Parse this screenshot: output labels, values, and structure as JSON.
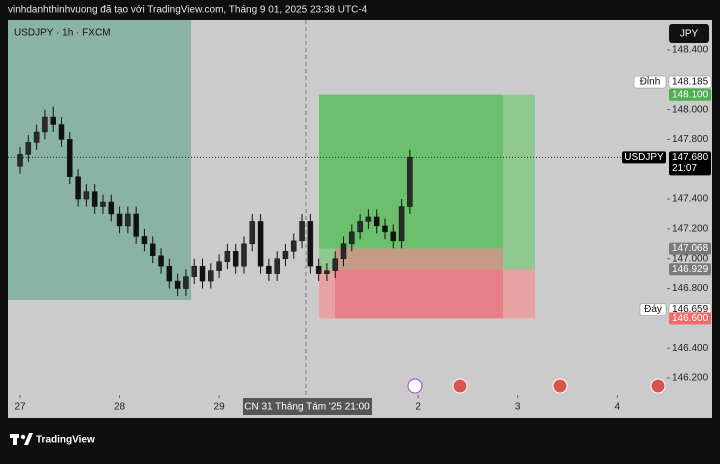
{
  "chart_data": {
    "type": "candlestick",
    "header": "vinhdanhthinhvuong đã tạo với TradingView.com, Tháng 9 01, 2025 23:38 UTC-4",
    "title": "USDJPY · 1h · FXCM",
    "currency": "JPY",
    "brand": "TradingView",
    "color": "#111111",
    "x": [
      0,
      2,
      4,
      6,
      8,
      10,
      12,
      14,
      16,
      18,
      20,
      22,
      24,
      26,
      28,
      30,
      32,
      34,
      36,
      38,
      40,
      42,
      44,
      46,
      48,
      50,
      52,
      54,
      56,
      58,
      60,
      62,
      64,
      66,
      68,
      70,
      72,
      74,
      76,
      78,
      80,
      82,
      84,
      86,
      88,
      90,
      92,
      94
    ],
    "open": [
      147.62,
      147.7,
      147.78,
      147.85,
      147.95,
      147.9,
      147.8,
      147.55,
      147.4,
      147.45,
      147.35,
      147.38,
      147.3,
      147.22,
      147.3,
      147.15,
      147.1,
      147.02,
      146.95,
      146.85,
      146.8,
      146.88,
      146.95,
      146.85,
      146.92,
      146.98,
      147.05,
      146.95,
      147.1,
      147.25,
      146.95,
      146.9,
      147.0,
      147.05,
      147.12,
      147.25,
      146.95,
      146.9,
      146.92,
      147.0,
      147.1,
      147.18,
      147.25,
      147.28,
      147.22,
      147.18,
      147.12,
      147.35
    ],
    "high": [
      147.75,
      147.83,
      147.9,
      148.0,
      148.02,
      147.95,
      147.85,
      147.6,
      147.5,
      147.5,
      147.43,
      147.43,
      147.35,
      147.35,
      147.35,
      147.2,
      147.15,
      147.07,
      147.0,
      146.9,
      146.93,
      147.0,
      147.0,
      146.97,
      147.03,
      147.1,
      147.1,
      147.15,
      147.3,
      147.3,
      147.0,
      147.05,
      147.1,
      147.17,
      147.3,
      147.3,
      147.0,
      146.97,
      147.05,
      147.15,
      147.23,
      147.3,
      147.33,
      147.33,
      147.27,
      147.23,
      147.4,
      147.73
    ],
    "low": [
      147.57,
      147.65,
      147.73,
      147.8,
      147.85,
      147.75,
      147.5,
      147.35,
      147.35,
      147.3,
      147.3,
      147.25,
      147.17,
      147.17,
      147.1,
      147.05,
      146.97,
      146.9,
      146.8,
      146.75,
      146.75,
      146.83,
      146.8,
      146.8,
      146.87,
      146.93,
      146.9,
      146.9,
      147.05,
      146.9,
      146.85,
      146.85,
      146.95,
      147.0,
      147.07,
      146.9,
      146.85,
      146.85,
      146.87,
      146.95,
      147.05,
      147.13,
      147.2,
      147.17,
      147.13,
      147.07,
      147.07,
      147.3
    ],
    "close": [
      147.7,
      147.78,
      147.85,
      147.95,
      147.9,
      147.8,
      147.55,
      147.4,
      147.45,
      147.35,
      147.38,
      147.3,
      147.22,
      147.3,
      147.15,
      147.1,
      147.02,
      146.95,
      146.85,
      146.8,
      146.88,
      146.95,
      146.85,
      146.92,
      146.98,
      147.05,
      146.95,
      147.1,
      147.25,
      146.95,
      146.9,
      147.0,
      147.05,
      147.12,
      147.25,
      146.95,
      146.9,
      146.92,
      147.0,
      147.1,
      147.18,
      147.25,
      147.28,
      147.22,
      147.18,
      147.12,
      147.35,
      147.68
    ],
    "xlim": [
      -2.9,
      156
    ],
    "ylim": [
      146.086,
      148.601
    ],
    "xticks": [
      {
        "value": 0,
        "label": "27"
      },
      {
        "value": 24,
        "label": "28"
      },
      {
        "value": 48,
        "label": "29"
      },
      {
        "value": 96,
        "label": "2"
      },
      {
        "value": 120,
        "label": "3"
      },
      {
        "value": 144,
        "label": "4"
      }
    ],
    "yticks": [
      {
        "value": 148.4,
        "label": "148.400"
      },
      {
        "value": 148.0,
        "label": "148.000"
      },
      {
        "value": 147.8,
        "label": "147.800"
      },
      {
        "value": 147.4,
        "label": "147.400"
      },
      {
        "value": 147.2,
        "label": "147.200"
      },
      {
        "value": 147.0,
        "label": "147.000"
      },
      {
        "value": 146.8,
        "label": "146.800"
      },
      {
        "value": 146.4,
        "label": "146.400"
      },
      {
        "value": 146.2,
        "label": "146.200"
      }
    ],
    "crosshair_label": "CN 31 Tháng Tám '25   21:00",
    "badges": [
      {
        "name": "Đỉnh",
        "value": 148.185,
        "color": "#ffffff"
      },
      {
        "value": {
          "value": 148.1,
          "label": "148.100"
        },
        "color": "#4caf50"
      },
      {
        "name": "USDJPY",
        "value": {
          "value": 147.68,
          "label": "147.680"
        },
        "sub": "21:07",
        "color": "#000000"
      },
      {
        "value": 147.068,
        "color": "#7a7a7a"
      },
      {
        "value": 146.929,
        "color": "#7a7a7a"
      },
      {
        "name": "Đáy",
        "value": 146.659,
        "color": "#ffffff"
      },
      {
        "value": {
          "value": 146.6,
          "label": "146.600"
        },
        "color": "#f06a6a"
      }
    ]
  }
}
